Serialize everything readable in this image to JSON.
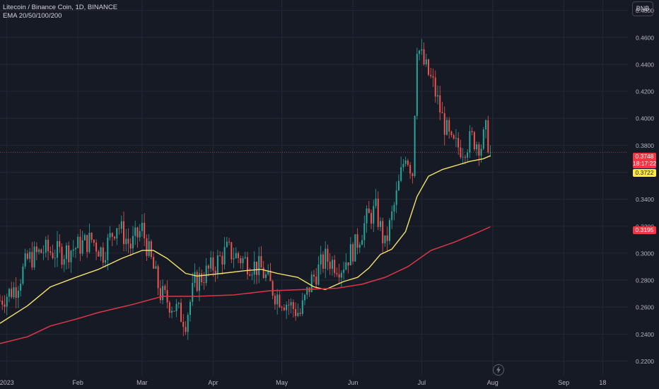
{
  "header": {
    "title": "Litecoin / Binance Coin, 1D, BINANCE",
    "indicators": "EMA 20/50/100/200"
  },
  "currency_button": "BNB",
  "price_tags": {
    "last_price": "0.3748",
    "countdown": "18:17:22",
    "ema_yellow": "0.3722",
    "ema_red": "0.3195"
  },
  "colors": {
    "background": "#161a25",
    "grid": "#232834",
    "up": "#26a69a",
    "down": "#ef5350",
    "ema_yellow": "#f5e26b",
    "ema_red": "#d33545",
    "axis_text": "#b2b5be"
  },
  "chart_data": {
    "type": "candlestick",
    "title": "Litecoin / Binance Coin, 1D, BINANCE",
    "y_axis_labels": [
      "0.4800",
      "0.4600",
      "0.4400",
      "0.4200",
      "0.4000",
      "0.3800",
      "0.3600",
      "0.3400",
      "0.3200",
      "0.3000",
      "0.2800",
      "0.2600",
      "0.2400",
      "0.2200"
    ],
    "x_axis_labels": [
      {
        "label": "2023",
        "date": "2023-01-01"
      },
      {
        "label": "Feb",
        "date": "2023-02-01"
      },
      {
        "label": "Mar",
        "date": "2023-03-01"
      },
      {
        "label": "Apr",
        "date": "2023-04-01"
      },
      {
        "label": "May",
        "date": "2023-05-01"
      },
      {
        "label": "Jun",
        "date": "2023-06-01"
      },
      {
        "label": "Jul",
        "date": "2023-07-01"
      },
      {
        "label": "Aug",
        "date": "2023-08-01"
      },
      {
        "label": "Sep",
        "date": "2023-09-01"
      },
      {
        "label": "18",
        "date": "2023-09-18"
      }
    ],
    "ylim": [
      0.215,
      0.4835
    ],
    "xlim": [
      "2022-12-29",
      "2023-09-29"
    ],
    "last_price": 0.3748,
    "close_trend": [
      [
        "2022-12-29",
        0.265
      ],
      [
        "2023-01-05",
        0.275
      ],
      [
        "2023-01-10",
        0.295
      ],
      [
        "2023-01-17",
        0.302
      ],
      [
        "2023-01-25",
        0.3
      ],
      [
        "2023-02-01",
        0.305
      ],
      [
        "2023-02-07",
        0.31
      ],
      [
        "2023-02-12",
        0.3
      ],
      [
        "2023-02-18",
        0.322
      ],
      [
        "2023-02-24",
        0.305
      ],
      [
        "2023-03-01",
        0.318
      ],
      [
        "2023-03-04",
        0.3
      ],
      [
        "2023-03-09",
        0.27
      ],
      [
        "2023-03-15",
        0.26
      ],
      [
        "2023-03-20",
        0.25
      ],
      [
        "2023-03-24",
        0.278
      ],
      [
        "2023-04-01",
        0.29
      ],
      [
        "2023-04-07",
        0.302
      ],
      [
        "2023-04-14",
        0.295
      ],
      [
        "2023-04-22",
        0.288
      ],
      [
        "2023-04-28",
        0.27
      ],
      [
        "2023-05-04",
        0.262
      ],
      [
        "2023-05-09",
        0.255
      ],
      [
        "2023-05-14",
        0.28
      ],
      [
        "2023-05-20",
        0.296
      ],
      [
        "2023-05-27",
        0.29
      ],
      [
        "2023-06-02",
        0.305
      ],
      [
        "2023-06-07",
        0.325
      ],
      [
        "2023-06-11",
        0.332
      ],
      [
        "2023-06-15",
        0.305
      ],
      [
        "2023-06-20",
        0.342
      ],
      [
        "2023-06-24",
        0.375
      ],
      [
        "2023-06-27",
        0.36
      ],
      [
        "2023-06-29",
        0.455
      ],
      [
        "2023-07-02",
        0.44
      ],
      [
        "2023-07-06",
        0.425
      ],
      [
        "2023-07-10",
        0.4
      ],
      [
        "2023-07-14",
        0.38
      ],
      [
        "2023-07-19",
        0.378
      ],
      [
        "2023-07-23",
        0.385
      ],
      [
        "2023-07-27",
        0.38
      ],
      [
        "2023-07-29",
        0.39
      ],
      [
        "2023-07-31",
        0.3748
      ]
    ],
    "series": [
      {
        "name": "EMA 20",
        "color": "#f5e26b",
        "points": [
          [
            "2022-12-29",
            0.248
          ],
          [
            "2023-01-10",
            0.261
          ],
          [
            "2023-01-20",
            0.275
          ],
          [
            "2023-01-31",
            0.282
          ],
          [
            "2023-02-10",
            0.288
          ],
          [
            "2023-02-20",
            0.296
          ],
          [
            "2023-03-01",
            0.302
          ],
          [
            "2023-03-06",
            0.302
          ],
          [
            "2023-03-12",
            0.296
          ],
          [
            "2023-03-20",
            0.285
          ],
          [
            "2023-03-25",
            0.283
          ],
          [
            "2023-04-05",
            0.285
          ],
          [
            "2023-04-15",
            0.287
          ],
          [
            "2023-04-22",
            0.288
          ],
          [
            "2023-04-29",
            0.285
          ],
          [
            "2023-05-08",
            0.282
          ],
          [
            "2023-05-15",
            0.275
          ],
          [
            "2023-05-20",
            0.273
          ],
          [
            "2023-05-28",
            0.279
          ],
          [
            "2023-06-03",
            0.282
          ],
          [
            "2023-06-08",
            0.289
          ],
          [
            "2023-06-13",
            0.299
          ],
          [
            "2023-06-18",
            0.303
          ],
          [
            "2023-06-24",
            0.316
          ],
          [
            "2023-06-29",
            0.342
          ],
          [
            "2023-07-04",
            0.357
          ],
          [
            "2023-07-10",
            0.362
          ],
          [
            "2023-07-16",
            0.365
          ],
          [
            "2023-07-22",
            0.368
          ],
          [
            "2023-07-28",
            0.37
          ],
          [
            "2023-07-31",
            0.3722
          ]
        ]
      },
      {
        "name": "EMA 200",
        "color": "#d33545",
        "points": [
          [
            "2022-12-29",
            0.233
          ],
          [
            "2023-01-10",
            0.238
          ],
          [
            "2023-01-20",
            0.246
          ],
          [
            "2023-01-31",
            0.251
          ],
          [
            "2023-02-10",
            0.256
          ],
          [
            "2023-02-25",
            0.262
          ],
          [
            "2023-03-10",
            0.268
          ],
          [
            "2023-03-25",
            0.268
          ],
          [
            "2023-04-10",
            0.269
          ],
          [
            "2023-04-25",
            0.272
          ],
          [
            "2023-05-10",
            0.273
          ],
          [
            "2023-05-25",
            0.274
          ],
          [
            "2023-06-05",
            0.277
          ],
          [
            "2023-06-15",
            0.282
          ],
          [
            "2023-06-25",
            0.29
          ],
          [
            "2023-07-05",
            0.302
          ],
          [
            "2023-07-15",
            0.308
          ],
          [
            "2023-07-25",
            0.315
          ],
          [
            "2023-07-31",
            0.3195
          ]
        ]
      }
    ],
    "grid": true,
    "legend": "top-left"
  }
}
